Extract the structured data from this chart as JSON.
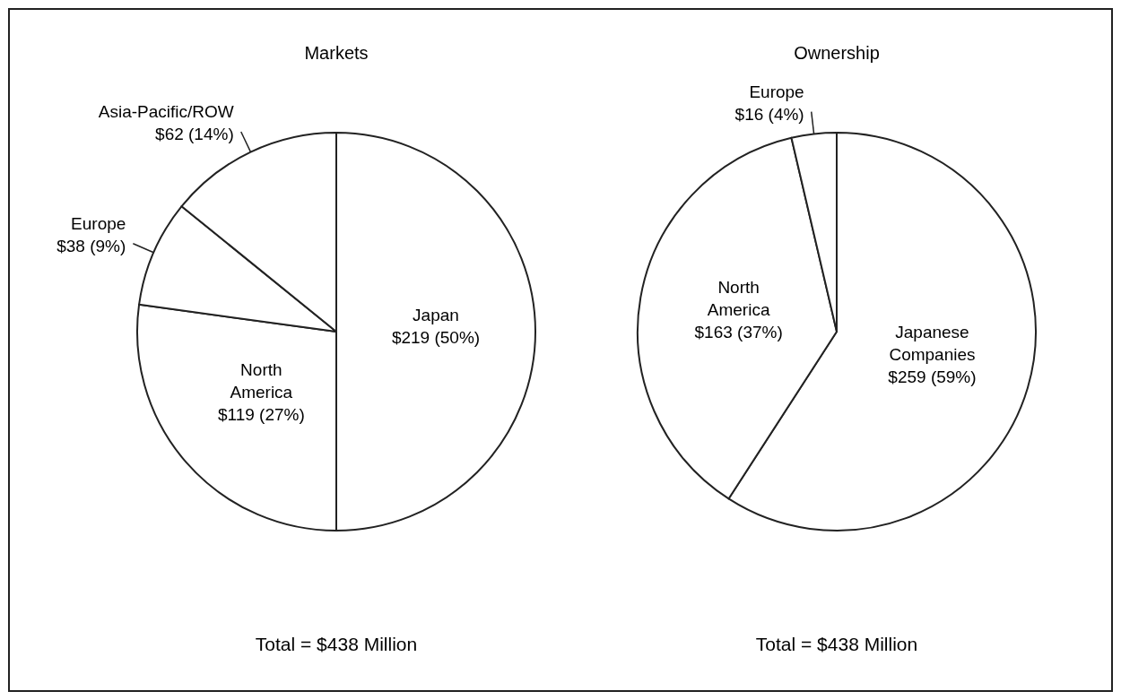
{
  "chart_data": [
    {
      "type": "pie",
      "title": "Markets",
      "categories": [
        "Japan",
        "North America",
        "Europe",
        "Asia-Pacific/ROW"
      ],
      "values": [
        219,
        119,
        38,
        62
      ],
      "value_labels": [
        "$219 (50%)",
        "$119 (27%)",
        "$38 (9%)",
        "$62 (14%)"
      ],
      "colors": [
        "#ffffff",
        "#ffffff",
        "#ffffff",
        "#ffffff"
      ],
      "annotations": [
        "Total = $438 Million"
      ]
    },
    {
      "type": "pie",
      "title": "Ownership",
      "categories": [
        "Japanese Companies",
        "North America",
        "Europe"
      ],
      "values": [
        259,
        163,
        16
      ],
      "value_labels": [
        "$259 (59%)",
        "$163 (37%)",
        "$16 (4%)"
      ],
      "colors": [
        "#ffffff",
        "#ffffff",
        "#ffffff"
      ],
      "annotations": [
        "Total = $438 Million"
      ]
    }
  ]
}
